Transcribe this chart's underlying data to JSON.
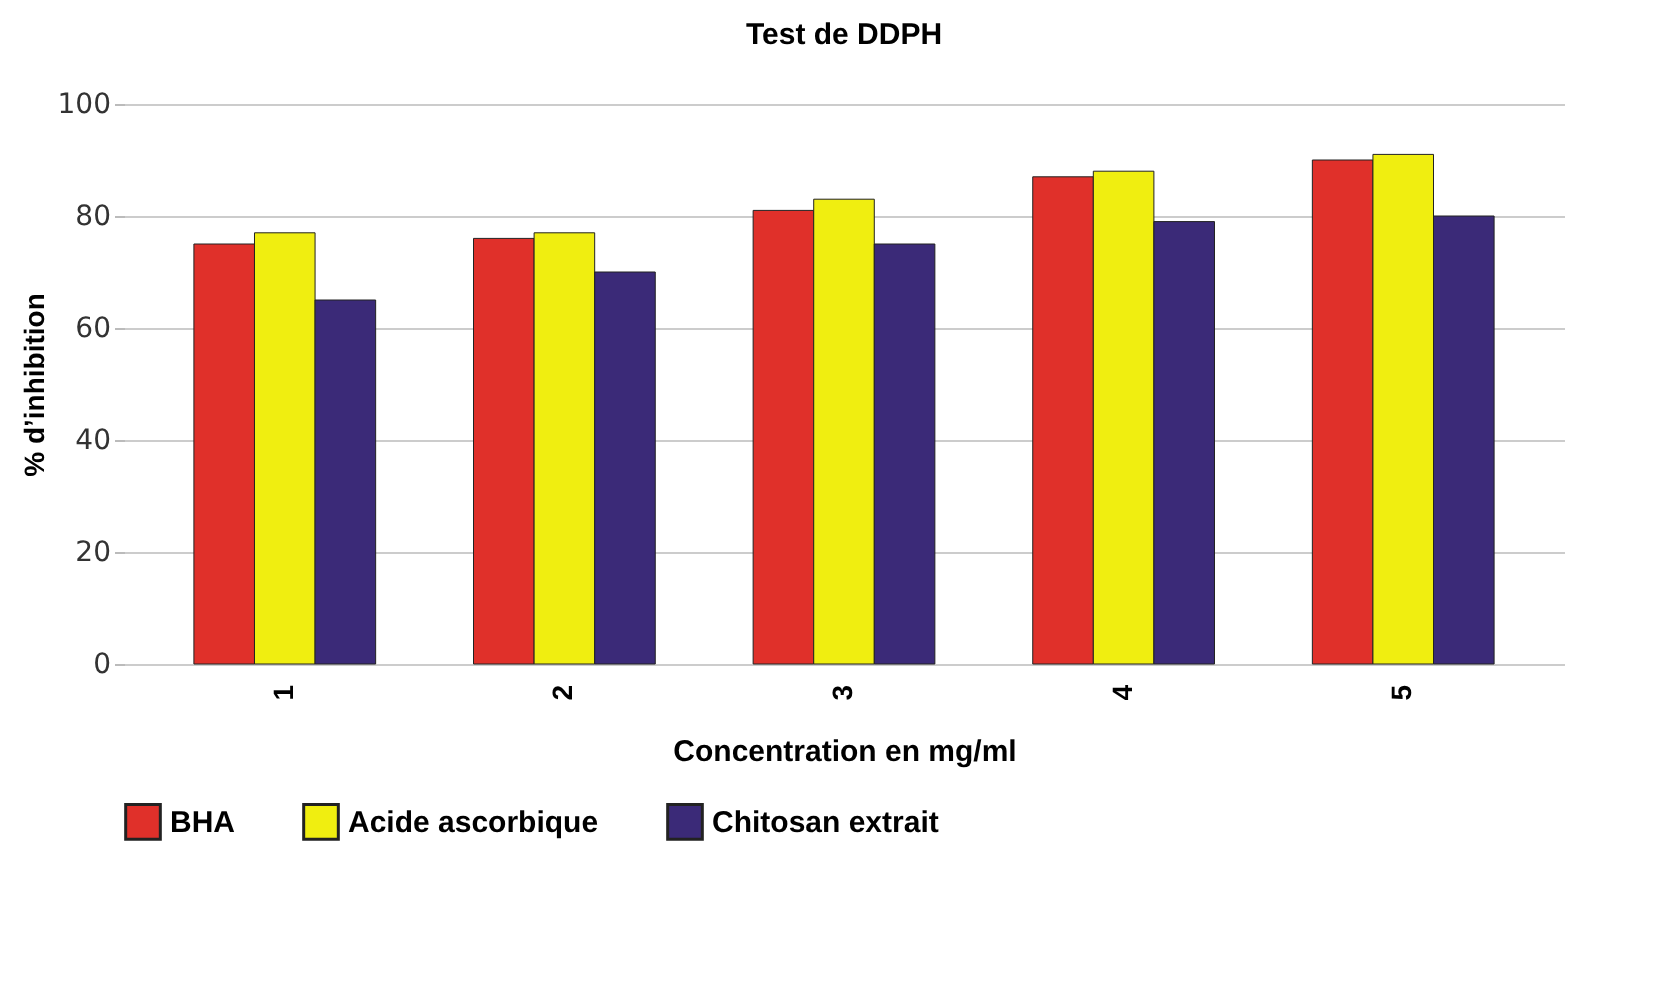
{
  "chart_data": {
    "type": "bar",
    "title": "Test de DDPH",
    "xlabel": "Concentration en mg/ml",
    "ylabel": "% d’inhibition",
    "categories": [
      "1",
      "2",
      "3",
      "4",
      "5"
    ],
    "series": [
      {
        "name": "BHA",
        "color": "#e0302a",
        "values": [
          75,
          76,
          81,
          87,
          90
        ]
      },
      {
        "name": "Acide ascorbique",
        "color": "#f0ee10",
        "values": [
          77,
          77,
          83,
          88,
          91
        ]
      },
      {
        "name": "Chitosan extrait",
        "color": "#3b2a78",
        "values": [
          65,
          70,
          75,
          79,
          80
        ]
      }
    ],
    "ylim": [
      0,
      100
    ],
    "yticks": [
      0,
      20,
      40,
      60,
      80,
      100
    ],
    "grid": "y",
    "legend": "bottom"
  }
}
